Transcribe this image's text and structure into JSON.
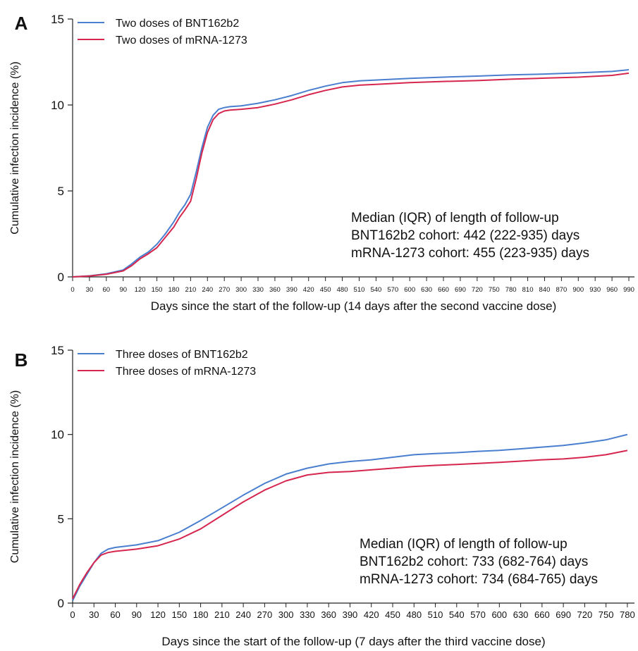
{
  "colors": {
    "bnt": "#4a7fcf",
    "mrna": "#d6264e",
    "axis": "#222222"
  },
  "chart_data": [
    {
      "panel_label": "A",
      "type": "line",
      "xlabel": "Days since the start of the follow-up (14 days after the second vaccine dose)",
      "ylabel": "Cumulative infection incidence (%)",
      "xlim": [
        0,
        1000
      ],
      "ylim": [
        0,
        15
      ],
      "xticks": [
        0,
        30,
        60,
        90,
        120,
        150,
        180,
        210,
        240,
        270,
        300,
        330,
        360,
        390,
        420,
        450,
        480,
        510,
        540,
        570,
        600,
        630,
        660,
        690,
        720,
        750,
        780,
        810,
        840,
        870,
        900,
        930,
        960,
        990
      ],
      "yticks": [
        0,
        5,
        10,
        15
      ],
      "grid": false,
      "legend_position": "top-left",
      "annotation_lines": [
        "Median (IQR) of length of follow-up",
        "BNT162b2 cohort: 442 (222-935) days",
        "mRNA-1273 cohort: 455 (223-935) days"
      ],
      "series": [
        {
          "name": "Two doses of BNT162b2",
          "color_key": "bnt",
          "x": [
            0,
            30,
            60,
            90,
            105,
            120,
            135,
            150,
            165,
            180,
            190,
            200,
            210,
            220,
            230,
            240,
            250,
            260,
            270,
            280,
            300,
            330,
            360,
            390,
            420,
            450,
            480,
            510,
            540,
            600,
            660,
            720,
            780,
            840,
            900,
            960,
            990
          ],
          "y": [
            0,
            0.06,
            0.18,
            0.4,
            0.75,
            1.15,
            1.45,
            1.9,
            2.5,
            3.2,
            3.75,
            4.2,
            4.8,
            6.1,
            7.5,
            8.7,
            9.4,
            9.75,
            9.85,
            9.9,
            9.95,
            10.1,
            10.3,
            10.55,
            10.85,
            11.1,
            11.3,
            11.4,
            11.45,
            11.55,
            11.62,
            11.68,
            11.75,
            11.8,
            11.87,
            11.95,
            12.05
          ]
        },
        {
          "name": "Two doses of mRNA-1273",
          "color_key": "mrna",
          "x": [
            0,
            30,
            60,
            90,
            105,
            120,
            135,
            150,
            165,
            180,
            190,
            200,
            210,
            220,
            230,
            240,
            250,
            260,
            270,
            280,
            300,
            330,
            360,
            390,
            420,
            450,
            480,
            510,
            540,
            600,
            660,
            720,
            780,
            840,
            900,
            960,
            990
          ],
          "y": [
            0,
            0.05,
            0.15,
            0.35,
            0.65,
            1.05,
            1.35,
            1.7,
            2.3,
            2.9,
            3.45,
            3.9,
            4.4,
            5.7,
            7.2,
            8.4,
            9.15,
            9.5,
            9.65,
            9.7,
            9.75,
            9.85,
            10.05,
            10.3,
            10.6,
            10.85,
            11.05,
            11.15,
            11.2,
            11.3,
            11.37,
            11.42,
            11.5,
            11.56,
            11.62,
            11.72,
            11.85
          ]
        }
      ]
    },
    {
      "panel_label": "B",
      "type": "line",
      "xlabel": "Days since the start of the follow-up (7 days after the third vaccine dose)",
      "ylabel": "Cumulative infection incidence (%)",
      "xlim": [
        0,
        790
      ],
      "ylim": [
        0,
        15
      ],
      "xticks": [
        0,
        30,
        60,
        90,
        120,
        150,
        180,
        210,
        240,
        270,
        300,
        330,
        360,
        390,
        420,
        450,
        480,
        510,
        540,
        570,
        600,
        630,
        660,
        690,
        720,
        750,
        780
      ],
      "yticks": [
        0,
        5,
        10,
        15
      ],
      "grid": false,
      "legend_position": "top-left",
      "annotation_lines": [
        "Median (IQR) of length of follow-up",
        "BNT162b2 cohort: 733 (682-764) days",
        "mRNA-1273 cohort: 734 (684-765) days"
      ],
      "series": [
        {
          "name": "Three doses of BNT162b2",
          "color_key": "bnt",
          "x": [
            0,
            10,
            20,
            30,
            40,
            50,
            60,
            90,
            120,
            150,
            180,
            210,
            240,
            270,
            300,
            330,
            360,
            390,
            420,
            450,
            480,
            510,
            540,
            570,
            600,
            630,
            660,
            690,
            720,
            750,
            780
          ],
          "y": [
            0.15,
            1.0,
            1.7,
            2.4,
            2.95,
            3.2,
            3.3,
            3.45,
            3.7,
            4.2,
            4.9,
            5.65,
            6.4,
            7.1,
            7.65,
            8.0,
            8.25,
            8.4,
            8.5,
            8.65,
            8.8,
            8.87,
            8.92,
            9.0,
            9.06,
            9.15,
            9.25,
            9.35,
            9.5,
            9.68,
            10.0
          ]
        },
        {
          "name": "Three doses of mRNA-1273",
          "color_key": "mrna",
          "x": [
            0,
            10,
            20,
            30,
            40,
            50,
            60,
            90,
            120,
            150,
            180,
            210,
            240,
            270,
            300,
            330,
            360,
            390,
            420,
            450,
            480,
            510,
            540,
            570,
            600,
            630,
            660,
            690,
            720,
            750,
            780
          ],
          "y": [
            0.25,
            1.1,
            1.8,
            2.4,
            2.85,
            3.0,
            3.07,
            3.2,
            3.4,
            3.8,
            4.4,
            5.2,
            6.0,
            6.7,
            7.25,
            7.6,
            7.75,
            7.8,
            7.9,
            8.0,
            8.1,
            8.17,
            8.22,
            8.28,
            8.35,
            8.42,
            8.5,
            8.55,
            8.65,
            8.8,
            9.05
          ]
        }
      ]
    }
  ]
}
